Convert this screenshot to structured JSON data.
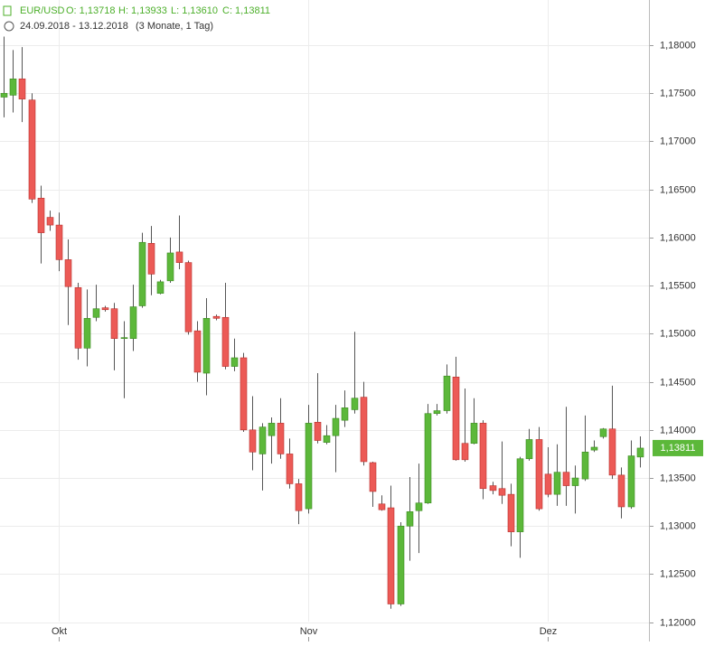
{
  "header": {
    "symbol": "EUR/USD",
    "open": "O: 1,13718",
    "high": "H: 1,13933",
    "low": "L: 1,13610",
    "close": "C: 1,13811",
    "range": "24.09.2018 - 13.12.2018",
    "period": "(3 Monate, 1 Tag)"
  },
  "chart_data": {
    "type": "candlestick",
    "categories": [
      null,
      null,
      null,
      null,
      null,
      null,
      "Okt",
      null,
      null,
      null,
      null,
      null,
      null,
      null,
      null,
      null,
      null,
      null,
      null,
      null,
      null,
      null,
      null,
      null,
      null,
      null,
      null,
      null,
      null,
      null,
      null,
      null,
      null,
      "Nov",
      null,
      null,
      null,
      null,
      null,
      null,
      null,
      null,
      null,
      null,
      null,
      null,
      null,
      null,
      null,
      null,
      null,
      null,
      null,
      null,
      null,
      null,
      null,
      null,
      null,
      "Dez",
      null,
      null,
      null,
      null,
      null,
      null,
      null,
      null,
      null,
      null
    ],
    "open": [
      1.1746,
      1.1748,
      1.1765,
      1.1743,
      1.1641,
      1.1621,
      1.1613,
      1.1577,
      1.1548,
      1.1485,
      1.1517,
      1.1527,
      1.1526,
      1.1495,
      1.1495,
      1.1529,
      1.1594,
      1.1542,
      1.1555,
      1.1585,
      1.1574,
      1.1503,
      1.1459,
      1.1518,
      1.1517,
      1.1466,
      1.1475,
      1.14,
      1.1375,
      1.1394,
      1.1407,
      1.1375,
      1.1344,
      1.1318,
      1.1408,
      1.1387,
      1.1394,
      1.141,
      1.1421,
      1.1434,
      1.1366,
      1.1323,
      1.1319,
      1.1219,
      1.13,
      1.1316,
      1.1324,
      1.1417,
      1.142,
      1.1455,
      1.1386,
      1.1386,
      1.1407,
      1.1342,
      1.1339,
      1.1333,
      1.1294,
      1.137,
      1.139,
      1.1354,
      1.1333,
      1.1356,
      1.1342,
      1.1349,
      1.1379,
      1.1393,
      1.1401,
      1.1353,
      1.132,
      1.13718
    ],
    "high": [
      1.1809,
      1.1795,
      1.1798,
      1.175,
      1.1654,
      1.1628,
      1.1626,
      1.1598,
      1.1553,
      1.1546,
      1.1551,
      1.1529,
      1.1532,
      1.1513,
      1.1551,
      1.1605,
      1.1612,
      1.1556,
      1.16,
      1.1623,
      1.1576,
      1.1513,
      1.1537,
      1.152,
      1.1553,
      1.1495,
      1.148,
      1.1435,
      1.1407,
      1.1413,
      1.1433,
      1.1391,
      1.1349,
      1.1426,
      1.1459,
      1.1405,
      1.1426,
      1.1441,
      1.1502,
      1.145,
      1.1367,
      1.1332,
      1.1342,
      1.1304,
      1.1351,
      1.1365,
      1.1427,
      1.1427,
      1.1468,
      1.1476,
      1.1443,
      1.1433,
      1.141,
      1.1346,
      1.1388,
      1.1344,
      1.1372,
      1.1401,
      1.1403,
      1.1382,
      1.1385,
      1.1424,
      1.1363,
      1.1415,
      1.1389,
      1.1402,
      1.1446,
      1.1361,
      1.1389,
      1.13933
    ],
    "low": [
      1.1725,
      1.173,
      1.172,
      1.1636,
      1.1573,
      1.1607,
      1.1565,
      1.1509,
      1.1473,
      1.1466,
      1.1513,
      1.1523,
      1.1462,
      1.1433,
      1.1482,
      1.1527,
      1.154,
      1.1541,
      1.1553,
      1.1567,
      1.1499,
      1.145,
      1.1436,
      1.1514,
      1.1463,
      1.1461,
      1.1398,
      1.1358,
      1.1337,
      1.1365,
      1.137,
      1.1339,
      1.1302,
      1.1313,
      1.1386,
      1.1385,
      1.1356,
      1.1403,
      1.1417,
      1.1363,
      1.132,
      1.1316,
      1.1214,
      1.1217,
      1.1264,
      1.1272,
      1.1323,
      1.1415,
      1.1417,
      1.1368,
      1.1367,
      1.1385,
      1.1328,
      1.1333,
      1.1323,
      1.1279,
      1.1267,
      1.1368,
      1.1316,
      1.133,
      1.1321,
      1.1321,
      1.1313,
      1.1347,
      1.1377,
      1.1391,
      1.1349,
      1.1308,
      1.1318,
      1.1361
    ],
    "close": [
      1.175,
      1.1765,
      1.1744,
      1.164,
      1.1605,
      1.1613,
      1.1577,
      1.1549,
      1.1485,
      1.1516,
      1.1526,
      1.1525,
      1.1495,
      1.1496,
      1.1528,
      1.1595,
      1.1562,
      1.1554,
      1.1584,
      1.1574,
      1.1502,
      1.146,
      1.1516,
      1.1516,
      1.1466,
      1.1475,
      1.14,
      1.1377,
      1.1403,
      1.1407,
      1.1375,
      1.1344,
      1.1316,
      1.1407,
      1.1389,
      1.1394,
      1.1412,
      1.1423,
      1.1433,
      1.1367,
      1.1336,
      1.1317,
      1.1219,
      1.13,
      1.1315,
      1.1324,
      1.1417,
      1.142,
      1.1456,
      1.1369,
      1.1369,
      1.1407,
      1.1339,
      1.1337,
      1.1332,
      1.1294,
      1.137,
      1.139,
      1.1318,
      1.1333,
      1.1356,
      1.1342,
      1.135,
      1.1377,
      1.1382,
      1.1401,
      1.1353,
      1.132,
      1.1373,
      1.13811
    ],
    "up_color": "#5cb83a",
    "down_color": "#ec5a56",
    "last_label": "1,13811",
    "ylim": [
      1.118,
      1.1847
    ],
    "yticks": [
      {
        "value": 1.12,
        "label": "1,12000"
      },
      {
        "value": 1.125,
        "label": "1,12500"
      },
      {
        "value": 1.13,
        "label": "1,13000"
      },
      {
        "value": 1.135,
        "label": "1,13500"
      },
      {
        "value": 1.14,
        "label": "1,14000"
      },
      {
        "value": 1.145,
        "label": "1,14500"
      },
      {
        "value": 1.15,
        "label": "1,15000"
      },
      {
        "value": 1.155,
        "label": "1,15500"
      },
      {
        "value": 1.16,
        "label": "1,16000"
      },
      {
        "value": 1.165,
        "label": "1,16500"
      },
      {
        "value": 1.17,
        "label": "1,17000"
      },
      {
        "value": 1.175,
        "label": "1,17500"
      },
      {
        "value": 1.18,
        "label": "1,18000"
      }
    ],
    "grid": true
  }
}
